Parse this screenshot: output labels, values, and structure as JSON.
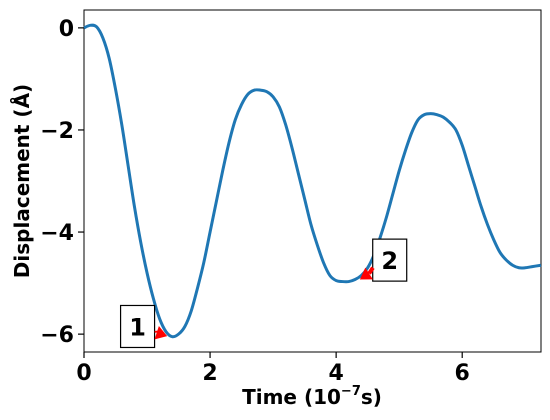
{
  "chart_data": {
    "type": "line",
    "xlabel_main": "Time (10",
    "xlabel_sup": "−7",
    "xlabel_tail": "s)",
    "ylabel": "Displacement (Å)",
    "xlim": [
      0,
      7.25
    ],
    "ylim": [
      -6.35,
      0.35
    ],
    "xticks": [
      0,
      2,
      4,
      6
    ],
    "yticks": [
      0,
      -2,
      -4,
      -6
    ],
    "xtick_labels": [
      "0",
      "2",
      "4",
      "6"
    ],
    "ytick_labels": [
      "0",
      "−2",
      "−4",
      "−6"
    ],
    "grid": false,
    "line_color": "#1f77b4",
    "series": [
      {
        "x": [
          0,
          0.1,
          0.2,
          0.3,
          0.4,
          0.5,
          0.6,
          0.7,
          0.8,
          0.9,
          1.0,
          1.1,
          1.2,
          1.3,
          1.4,
          1.5,
          1.6,
          1.7,
          1.8,
          1.9,
          2.0,
          2.1,
          2.2,
          2.3,
          2.4,
          2.5,
          2.6,
          2.7,
          2.8,
          2.9,
          3.0,
          3.1,
          3.2,
          3.3,
          3.4,
          3.5,
          3.6,
          3.7,
          3.8,
          3.9,
          4.0,
          4.1,
          4.2,
          4.3,
          4.4,
          4.5,
          4.6,
          4.7,
          4.8,
          4.9,
          5.0,
          5.1,
          5.2,
          5.3,
          5.4,
          5.5,
          5.6,
          5.7,
          5.8,
          5.9,
          6.0,
          6.1,
          6.2,
          6.3,
          6.4,
          6.5,
          6.6,
          6.7,
          6.8,
          6.9,
          7.0,
          7.1,
          7.25
        ],
        "y": [
          0.0,
          0.05,
          0.02,
          -0.2,
          -0.6,
          -1.2,
          -1.9,
          -2.7,
          -3.5,
          -4.2,
          -4.8,
          -5.3,
          -5.7,
          -5.95,
          -6.05,
          -6.0,
          -5.85,
          -5.55,
          -5.1,
          -4.6,
          -4.0,
          -3.4,
          -2.8,
          -2.25,
          -1.8,
          -1.5,
          -1.3,
          -1.22,
          -1.22,
          -1.25,
          -1.35,
          -1.55,
          -1.9,
          -2.35,
          -2.85,
          -3.35,
          -3.85,
          -4.25,
          -4.6,
          -4.85,
          -4.95,
          -4.97,
          -4.97,
          -4.93,
          -4.85,
          -4.7,
          -4.45,
          -4.1,
          -3.7,
          -3.25,
          -2.8,
          -2.4,
          -2.05,
          -1.8,
          -1.7,
          -1.68,
          -1.7,
          -1.75,
          -1.85,
          -2.0,
          -2.3,
          -2.7,
          -3.1,
          -3.5,
          -3.85,
          -4.15,
          -4.4,
          -4.55,
          -4.65,
          -4.7,
          -4.7,
          -4.68,
          -4.65
        ]
      }
    ],
    "annotations": [
      {
        "label": "1",
        "x": 1.35,
        "y": -6.05,
        "box_at": [
          0.85,
          -5.85
        ]
      },
      {
        "label": "2",
        "x": 4.35,
        "y": -4.95,
        "box_at": [
          4.85,
          -4.55
        ]
      }
    ],
    "annotation_arrow_color": "#ff0000"
  }
}
